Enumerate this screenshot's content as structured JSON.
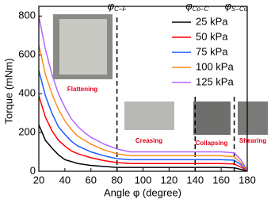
{
  "chart_data": {
    "type": "line",
    "x_label": "Angle φ (degree)",
    "y_label": "Torque (mNm)",
    "x": [
      20,
      25,
      30,
      35,
      40,
      45,
      50,
      55,
      60,
      70,
      80,
      90,
      100,
      110,
      120,
      130,
      140,
      150,
      160,
      170,
      175,
      180
    ],
    "series": [
      {
        "name": "25 kPa",
        "color": "#000000",
        "values": [
          240,
          160,
          120,
          85,
          60,
          50,
          40,
          35,
          30,
          25,
          20,
          20,
          20,
          20,
          20,
          20,
          20,
          20,
          20,
          18,
          10,
          2
        ]
      },
      {
        "name": "50 kPa",
        "color": "#ff0000",
        "values": [
          390,
          280,
          210,
          160,
          130,
          105,
          90,
          80,
          70,
          55,
          45,
          40,
          40,
          40,
          40,
          40,
          40,
          40,
          40,
          38,
          22,
          3
        ]
      },
      {
        "name": "75 kPa",
        "color": "#1a5cff",
        "values": [
          520,
          390,
          300,
          230,
          190,
          155,
          130,
          115,
          100,
          80,
          65,
          60,
          60,
          60,
          60,
          60,
          60,
          60,
          60,
          57,
          35,
          4
        ]
      },
      {
        "name": "100 kPa",
        "color": "#ff8c1a",
        "values": [
          650,
          500,
          400,
          320,
          260,
          215,
          180,
          160,
          140,
          110,
          90,
          80,
          80,
          80,
          80,
          80,
          80,
          80,
          80,
          75,
          45,
          5
        ]
      },
      {
        "name": "125 kPa",
        "color": "#b266ff",
        "values": [
          800,
          630,
          500,
          400,
          330,
          270,
          230,
          200,
          175,
          140,
          115,
          100,
          100,
          100,
          100,
          100,
          100,
          100,
          100,
          95,
          60,
          8
        ]
      }
    ],
    "xlim": [
      20,
      180
    ],
    "xticks": [
      20,
      40,
      60,
      80,
      100,
      120,
      140,
      160,
      180
    ],
    "ylim": [
      0,
      850
    ],
    "yticks": [
      0,
      200,
      400,
      600,
      800
    ],
    "legend": "upper-right",
    "phases": [
      {
        "symbol": "φ",
        "sub": "C−F",
        "x": 80
      },
      {
        "symbol": "φ",
        "sub": "Co−C",
        "x": 140
      },
      {
        "symbol": "φ",
        "sub": "S−Co",
        "x": 170
      }
    ],
    "photo_captions": [
      "Flattening",
      "Creasing",
      "Collapsing",
      "Shearing"
    ]
  }
}
